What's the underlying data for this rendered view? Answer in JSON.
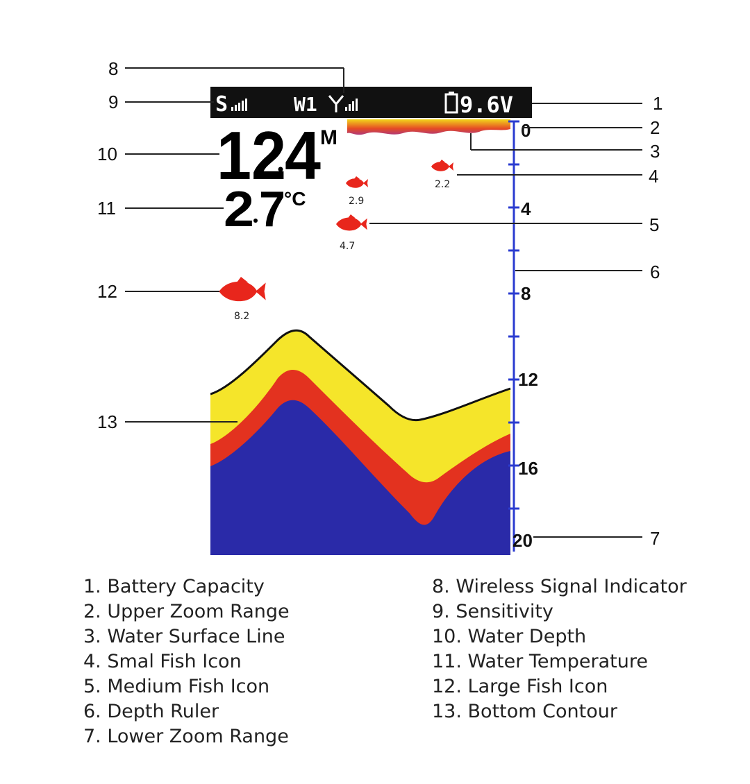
{
  "status_bar": {
    "sensitivity_label": "S",
    "wireless_label": "W1",
    "battery_voltage": "9.6V"
  },
  "readings": {
    "depth_int": "12",
    "depth_dec": "4",
    "depth_unit": "M",
    "temp_int": "2",
    "temp_dec": "7",
    "temp_unit": "°C"
  },
  "fish": [
    {
      "size": "small",
      "depth": "2.2"
    },
    {
      "size": "small",
      "depth": "2.9"
    },
    {
      "size": "medium",
      "depth": "4.7"
    },
    {
      "size": "large",
      "depth": "8.2"
    }
  ],
  "ruler": {
    "labels": [
      "0",
      "4",
      "8",
      "12",
      "16",
      "20"
    ]
  },
  "callouts": [
    "1",
    "2",
    "3",
    "4",
    "5",
    "6",
    "7",
    "8",
    "9",
    "10",
    "11",
    "12",
    "13"
  ],
  "legend": {
    "left": [
      "1. Battery Capacity",
      "2. Upper Zoom Range",
      "3. Water Surface Line",
      "4. Smal Fish Icon",
      "5. Medium Fish Icon",
      "6. Depth Ruler",
      "7. Lower Zoom Range"
    ],
    "right": [
      "8. Wireless Signal Indicator",
      "9. Sensitivity",
      "10. Water Depth",
      "11. Water Temperature",
      "12. Large Fish Icon",
      "13. Bottom Contour"
    ]
  },
  "colors": {
    "status_bar": "#111111",
    "fish": "#e8261c",
    "ruler": "#2a3bd0",
    "bottom_yellow": "#f5e52a",
    "bottom_red": "#e3321f",
    "bottom_blue": "#2a2aa8"
  }
}
